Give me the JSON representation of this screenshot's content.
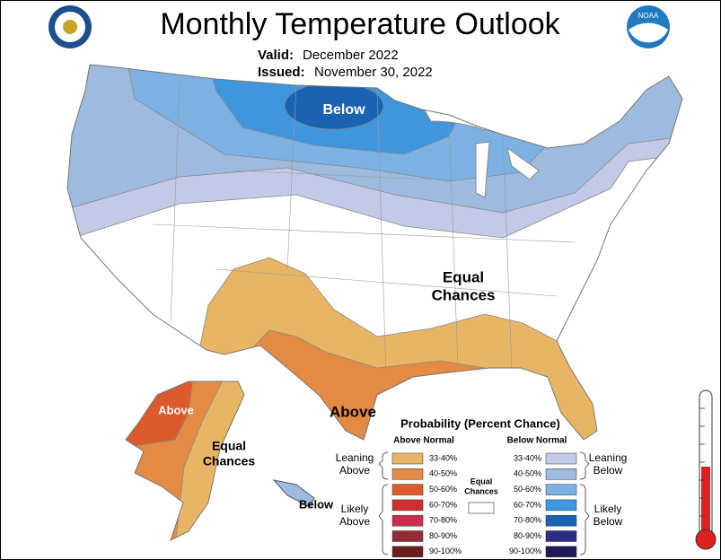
{
  "header": {
    "title": "Monthly Temperature Outlook",
    "valid_label": "Valid:",
    "valid_value": "December 2022",
    "issued_label": "Issued:",
    "issued_value": "November 30, 2022",
    "logo_text": "NOAA"
  },
  "map_labels": {
    "conus_below": "Below",
    "conus_equal": [
      "Equal",
      "Chances"
    ],
    "conus_above": "Above",
    "alaska_above": "Above",
    "alaska_equal": [
      "Equal",
      "Chances"
    ],
    "alaska_below": "Below"
  },
  "legend": {
    "title": "Probability (Percent Chance)",
    "above_header": "Above Normal",
    "below_header": "Below Normal",
    "above": [
      {
        "label": "33-40%",
        "color": "#e8b565"
      },
      {
        "label": "40-50%",
        "color": "#e38a44"
      },
      {
        "label": "50-60%",
        "color": "#dc5a2b"
      },
      {
        "label": "60-70%",
        "color": "#cf2f2e"
      },
      {
        "label": "70-80%",
        "color": "#c7304c"
      },
      {
        "label": "80-90%",
        "color": "#942c36"
      },
      {
        "label": "90-100%",
        "color": "#6a1e1f"
      }
    ],
    "below": [
      {
        "label": "33-40%",
        "color": "#c3cae7"
      },
      {
        "label": "40-50%",
        "color": "#9dbadf"
      },
      {
        "label": "50-60%",
        "color": "#7db1e3"
      },
      {
        "label": "60-70%",
        "color": "#3f96dd"
      },
      {
        "label": "70-80%",
        "color": "#1a63b3"
      },
      {
        "label": "80-90%",
        "color": "#2d2a88"
      },
      {
        "label": "90-100%",
        "color": "#1f1a57"
      }
    ],
    "leaning_above": [
      "Leaning",
      "Above"
    ],
    "likely_above": [
      "Likely",
      "Above"
    ],
    "equal_chances": [
      "Equal",
      "Chances"
    ],
    "leaning_below": [
      "Leaning",
      "Below"
    ],
    "likely_below": [
      "Likely",
      "Below"
    ]
  }
}
